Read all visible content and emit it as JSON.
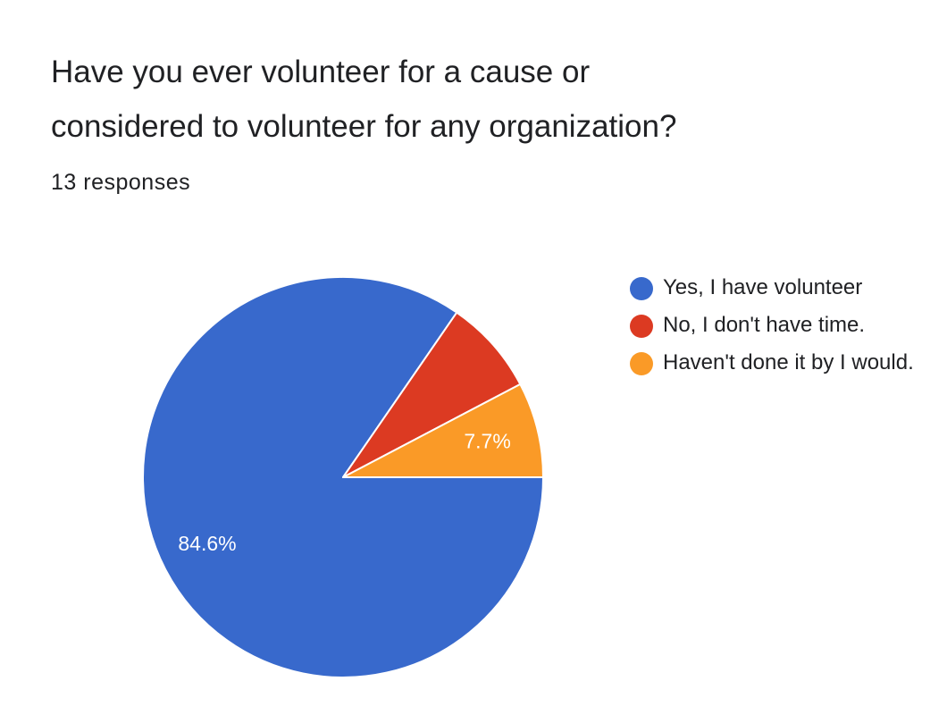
{
  "title_line1": "Have you ever volunteer for a cause or",
  "title_line2": "considered to volunteer for any organization?",
  "subtitle": "13 responses",
  "chart_data": {
    "type": "pie",
    "title": "Have you ever volunteer for a cause or considered to volunteer for any organization?",
    "total_responses": 13,
    "slices": [
      {
        "label": "Yes, I have volunteer",
        "count": 11,
        "percent": 84.6,
        "data_label": "84.6%",
        "color": "#3869cc"
      },
      {
        "label": "No, I don't have time.",
        "count": 1,
        "percent": 7.7,
        "data_label": "",
        "color": "#dc3a22"
      },
      {
        "label": "Haven't done it by I would.",
        "count": 1,
        "percent": 7.7,
        "data_label": "7.7%",
        "color": "#fa9a27"
      }
    ],
    "start": "3 o'clock",
    "direction": "counter-clockwise",
    "legend_position": "right"
  }
}
